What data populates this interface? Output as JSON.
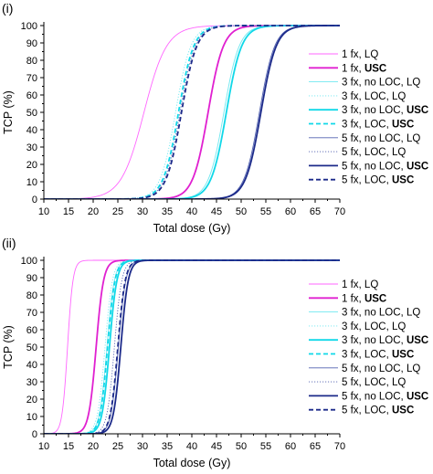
{
  "chart_data": [
    {
      "panel_label": "(i)",
      "type": "line",
      "xlabel": "Total dose (Gy)",
      "ylabel": "TCP (%)",
      "xlim": [
        10,
        70
      ],
      "ylim": [
        0,
        100
      ],
      "xticks": [
        "10",
        "15",
        "20",
        "25",
        "30",
        "35",
        "40",
        "45",
        "50",
        "55",
        "60",
        "65",
        "70"
      ],
      "yticks": [
        "0",
        "10",
        "20",
        "30",
        "40",
        "50",
        "60",
        "70",
        "80",
        "90",
        "100"
      ],
      "legend_position": "right",
      "series": [
        {
          "name": "1 fx, LQ",
          "name_plain": "1 fx, LQ",
          "name_bold": "",
          "color": "#ff66ff",
          "dash": "solid",
          "width": 0.9,
          "d50": 30.3,
          "k": 2.3
        },
        {
          "name": "1 fx, USC",
          "name_plain": "1 fx, ",
          "name_bold": "USC",
          "color": "#e020d0",
          "dash": "solid",
          "width": 1.8,
          "d50": 43.3,
          "k": 1.55
        },
        {
          "name": "3 fx, no LOC, LQ",
          "name_plain": "3 fx, no LOC, LQ",
          "name_bold": "",
          "color": "#70e8f0",
          "dash": "solid",
          "width": 0.9,
          "d50": 46.5,
          "k": 1.55
        },
        {
          "name": "3 fx, LOC, LQ",
          "name_plain": "3 fx, LOC, LQ",
          "name_bold": "",
          "color": "#70e8f0",
          "dash": "dotted",
          "width": 0.9,
          "d50": 36.7,
          "k": 1.55
        },
        {
          "name": "3 fx, no LOC, USC",
          "name_plain": "3 fx, no LOC, ",
          "name_bold": "USC",
          "color": "#10d8e8",
          "dash": "solid",
          "width": 1.8,
          "d50": 47.0,
          "k": 1.55
        },
        {
          "name": "3 fx, LOC, USC",
          "name_plain": "3 fx, LOC, ",
          "name_bold": "USC",
          "color": "#10d8e8",
          "dash": "dashed",
          "width": 1.8,
          "d50": 37.3,
          "k": 1.55
        },
        {
          "name": "5 fx, no LOC, LQ",
          "name_plain": "5 fx, no LOC, LQ",
          "name_bold": "",
          "color": "#5060b0",
          "dash": "solid",
          "width": 0.9,
          "d50": 53.7,
          "k": 1.55
        },
        {
          "name": "5 fx, LOC, LQ",
          "name_plain": "5 fx, LOC, LQ",
          "name_bold": "",
          "color": "#5060b0",
          "dash": "dotted",
          "width": 0.9,
          "d50": 37.6,
          "k": 1.55
        },
        {
          "name": "5 fx, no LOC, USC",
          "name_plain": "5 fx, no LOC, ",
          "name_bold": "USC",
          "color": "#1c2a8a",
          "dash": "solid",
          "width": 1.8,
          "d50": 54.0,
          "k": 1.55
        },
        {
          "name": "5 fx, LOC, USC",
          "name_plain": "5 fx, LOC, ",
          "name_bold": "USC",
          "color": "#1c2a8a",
          "dash": "dashed",
          "width": 1.8,
          "d50": 37.9,
          "k": 1.55
        }
      ]
    },
    {
      "panel_label": "(ii)",
      "type": "line",
      "xlabel": "Total dose (Gy)",
      "ylabel": "TCP (%)",
      "xlim": [
        10,
        70
      ],
      "ylim": [
        0,
        100
      ],
      "xticks": [
        "10",
        "15",
        "20",
        "25",
        "30",
        "35",
        "40",
        "45",
        "50",
        "55",
        "60",
        "65",
        "70"
      ],
      "yticks": [
        "0",
        "10",
        "20",
        "30",
        "40",
        "50",
        "60",
        "70",
        "80",
        "90",
        "100"
      ],
      "legend_position": "right",
      "series": [
        {
          "name": "1 fx, LQ",
          "name_plain": "1 fx, LQ",
          "name_bold": "",
          "color": "#ff66ff",
          "dash": "solid",
          "width": 0.9,
          "d50": 14.8,
          "k": 0.55
        },
        {
          "name": "1 fx, USC",
          "name_plain": "1 fx, ",
          "name_bold": "USC",
          "color": "#e020d0",
          "dash": "solid",
          "width": 1.8,
          "d50": 20.6,
          "k": 0.75
        },
        {
          "name": "3 fx, no LOC, LQ",
          "name_plain": "3 fx, no LOC, LQ",
          "name_bold": "",
          "color": "#70e8f0",
          "dash": "solid",
          "width": 0.9,
          "d50": 22.8,
          "k": 0.75
        },
        {
          "name": "3 fx, LOC, LQ",
          "name_plain": "3 fx, LOC, LQ",
          "name_bold": "",
          "color": "#70e8f0",
          "dash": "dotted",
          "width": 0.9,
          "d50": 22.4,
          "k": 0.75
        },
        {
          "name": "3 fx, no LOC, USC",
          "name_plain": "3 fx, no LOC, ",
          "name_bold": "USC",
          "color": "#10d8e8",
          "dash": "solid",
          "width": 1.8,
          "d50": 23.3,
          "k": 0.75
        },
        {
          "name": "3 fx, LOC, USC",
          "name_plain": "3 fx, LOC, ",
          "name_bold": "USC",
          "color": "#10d8e8",
          "dash": "dashed",
          "width": 1.8,
          "d50": 22.9,
          "k": 0.75
        },
        {
          "name": "5 fx, no LOC, LQ",
          "name_plain": "5 fx, no LOC, LQ",
          "name_bold": "",
          "color": "#5060b0",
          "dash": "solid",
          "width": 0.9,
          "d50": 25.1,
          "k": 0.75
        },
        {
          "name": "5 fx, LOC, LQ",
          "name_plain": "5 fx, LOC, LQ",
          "name_bold": "",
          "color": "#5060b0",
          "dash": "dotted",
          "width": 0.9,
          "d50": 24.3,
          "k": 0.75
        },
        {
          "name": "5 fx, no LOC, USC",
          "name_plain": "5 fx, no LOC, ",
          "name_bold": "USC",
          "color": "#1c2a8a",
          "dash": "solid",
          "width": 1.8,
          "d50": 25.6,
          "k": 0.75
        },
        {
          "name": "5 fx, LOC, USC",
          "name_plain": "5 fx, LOC, ",
          "name_bold": "USC",
          "color": "#1c2a8a",
          "dash": "dashed",
          "width": 1.8,
          "d50": 25.0,
          "k": 0.75
        }
      ]
    }
  ]
}
